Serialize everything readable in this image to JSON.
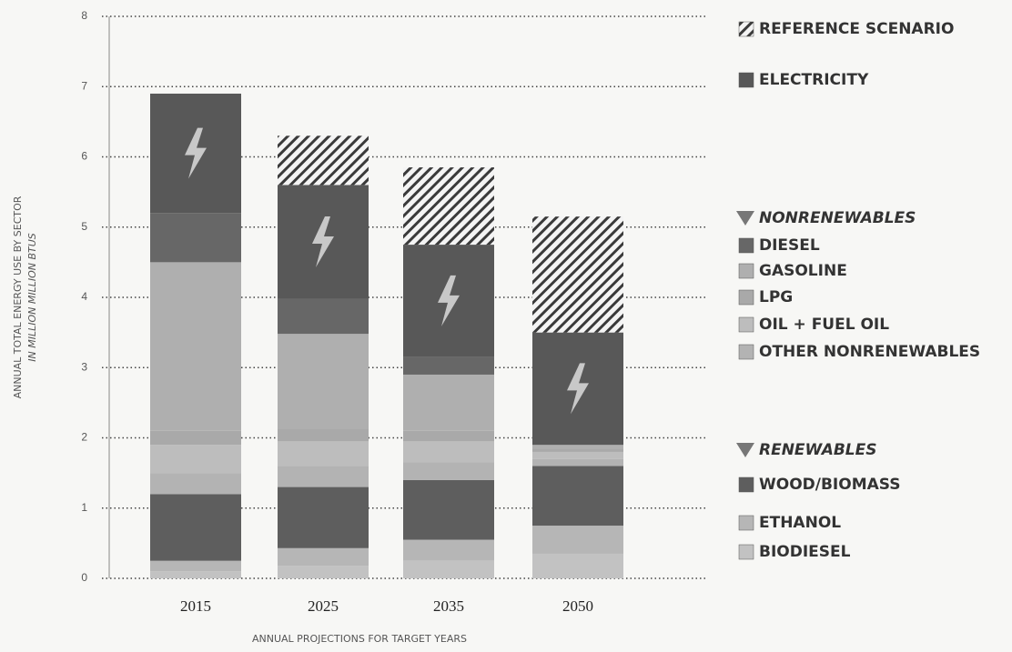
{
  "chart_data": {
    "type": "stacked_bar",
    "xlabel": "ANNUAL PROJECTIONS FOR TARGET YEARS",
    "ylabel": "ANNUAL TOTAL ENERGY USE BY SECTOR",
    "ylabel_sub": "IN MILLION MILLION BTUS",
    "categories": [
      "2015",
      "2025",
      "2035",
      "2050"
    ],
    "ylim": [
      0,
      8
    ],
    "yticks": [
      0,
      1,
      2,
      3,
      4,
      5,
      6,
      7,
      8
    ],
    "grid": true,
    "legend_groups": [
      "NONRENEWABLES",
      "RENEWABLES"
    ],
    "series": [
      {
        "name": "BIODIESEL",
        "color": "#c2c2c2",
        "values": [
          0.1,
          0.18,
          0.25,
          0.35
        ]
      },
      {
        "name": "ETHANOL",
        "color": "#b6b6b6",
        "values": [
          0.15,
          0.25,
          0.3,
          0.4
        ]
      },
      {
        "name": "WOOD/BIOMASS",
        "color": "#5e5e5e",
        "values": [
          0.95,
          0.87,
          0.85,
          0.85
        ]
      },
      {
        "name": "OTHER NONRENEWABLES",
        "color": "#b3b3b3",
        "values": [
          0.3,
          0.3,
          0.25,
          0.1
        ]
      },
      {
        "name": "OIL + FUEL OIL",
        "color": "#bdbdbd",
        "values": [
          0.4,
          0.35,
          0.3,
          0.1
        ]
      },
      {
        "name": "LPG",
        "color": "#a9a9a9",
        "values": [
          0.2,
          0.18,
          0.15,
          0.05
        ]
      },
      {
        "name": "GASOLINE",
        "color": "#afafaf",
        "values": [
          2.4,
          1.35,
          0.8,
          0.05
        ]
      },
      {
        "name": "DIESEL",
        "color": "#676767",
        "values": [
          0.7,
          0.5,
          0.25,
          0
        ]
      },
      {
        "name": "ELECTRICITY",
        "color": "#585858",
        "values": [
          1.7,
          1.62,
          1.6,
          1.6
        ]
      },
      {
        "name": "REFERENCE SCENARIO",
        "color": "#3a3a3a",
        "pattern": "hatch",
        "values": [
          0,
          0.7,
          1.1,
          1.65
        ]
      }
    ]
  }
}
